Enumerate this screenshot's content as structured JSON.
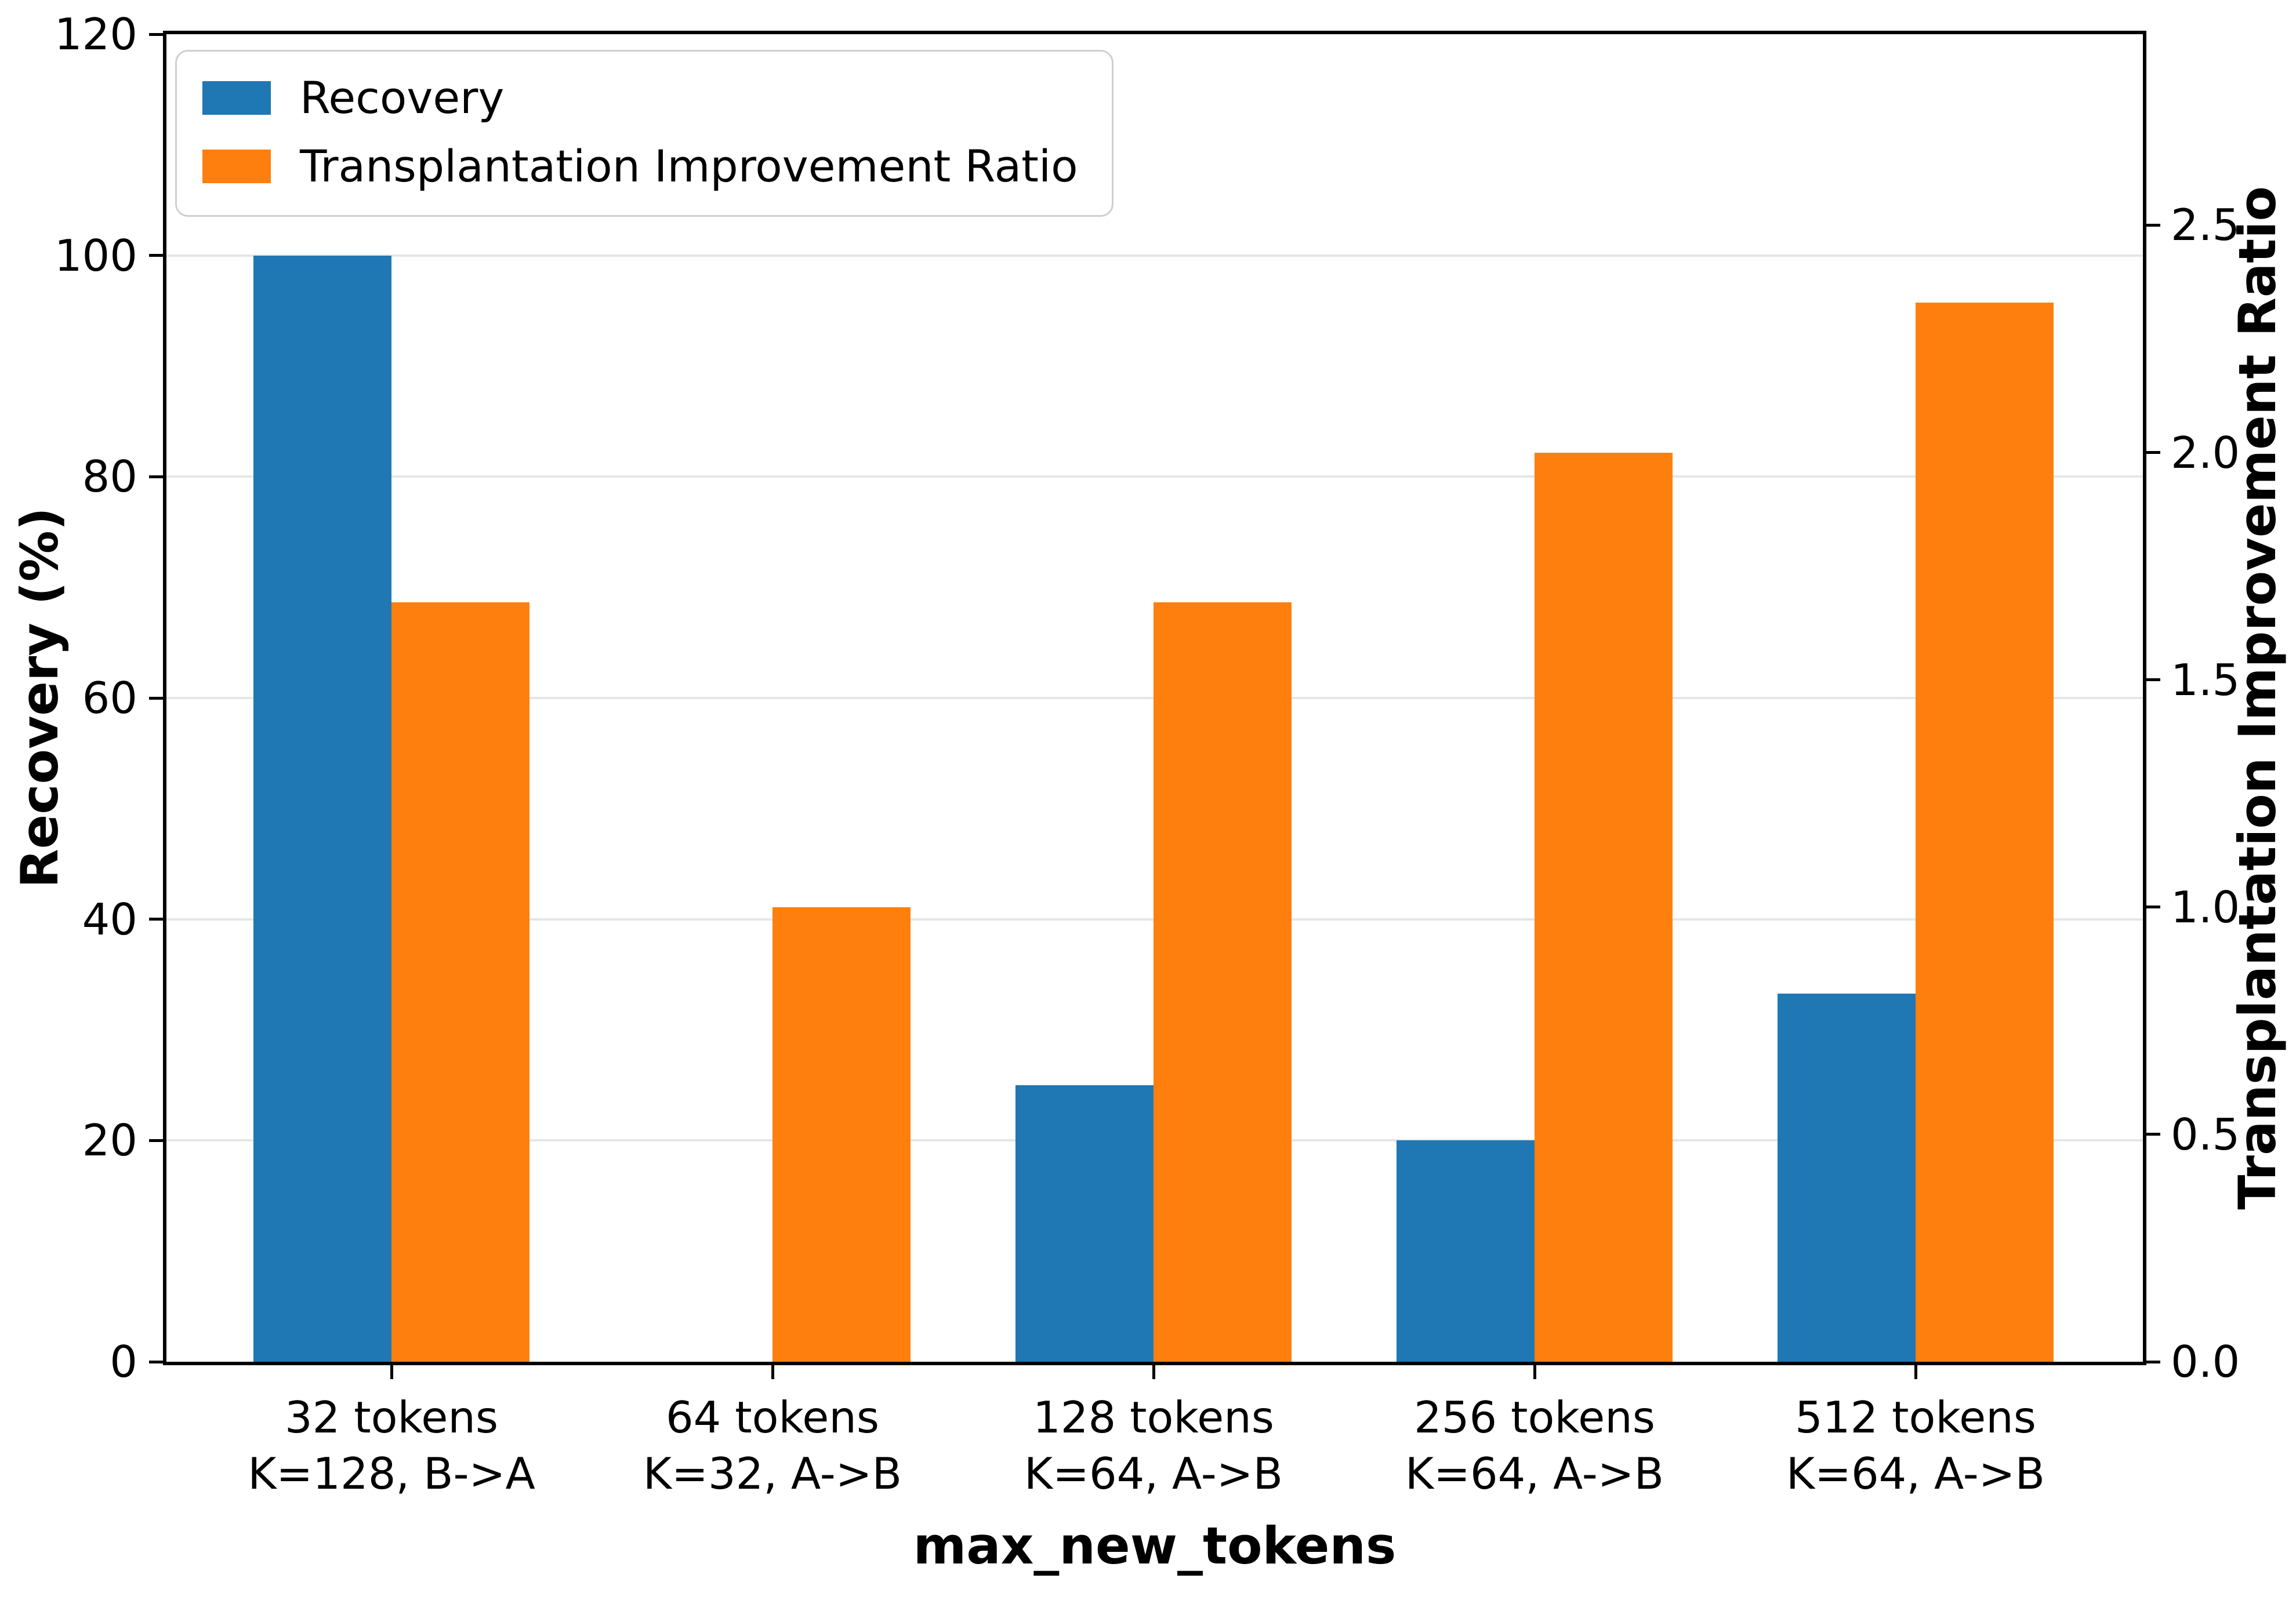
{
  "chart_data": {
    "type": "bar",
    "title": "",
    "xlabel": "max_new_tokens",
    "ylabel_left": "Recovery (%)",
    "ylabel_right": "Transplantation Improvement Ratio",
    "categories": [
      "32 tokens\nK=128, B->A",
      "64 tokens\nK=32, A->B",
      "128 tokens\nK=64, A->B",
      "256 tokens\nK=64, A->B",
      "512 tokens\nK=64, A->B"
    ],
    "series": [
      {
        "name": "Recovery",
        "axis": "left",
        "color": "#1f77b4",
        "values": [
          100,
          0,
          25,
          20,
          33.3
        ]
      },
      {
        "name": "Transplantation Improvement Ratio",
        "axis": "right",
        "color": "#ff7f0e",
        "values": [
          1.67,
          1.0,
          1.67,
          2.0,
          2.33
        ]
      }
    ],
    "left_axis": {
      "range": [
        0,
        120
      ],
      "values": [
        0,
        20,
        40,
        60,
        80,
        100,
        120
      ],
      "labels": [
        "0",
        "20",
        "40",
        "60",
        "80",
        "100",
        "120"
      ]
    },
    "right_axis": {
      "range": [
        0,
        2.92
      ],
      "values": [
        0,
        0.5,
        1.0,
        1.5,
        2.0,
        2.5
      ],
      "labels": [
        "0.0",
        "0.5",
        "1.0",
        "1.5",
        "2.0",
        "2.5"
      ]
    },
    "grid": "horizontal-left-axis",
    "legend_position": "upper left",
    "grid_color": "#e6e6e6"
  }
}
